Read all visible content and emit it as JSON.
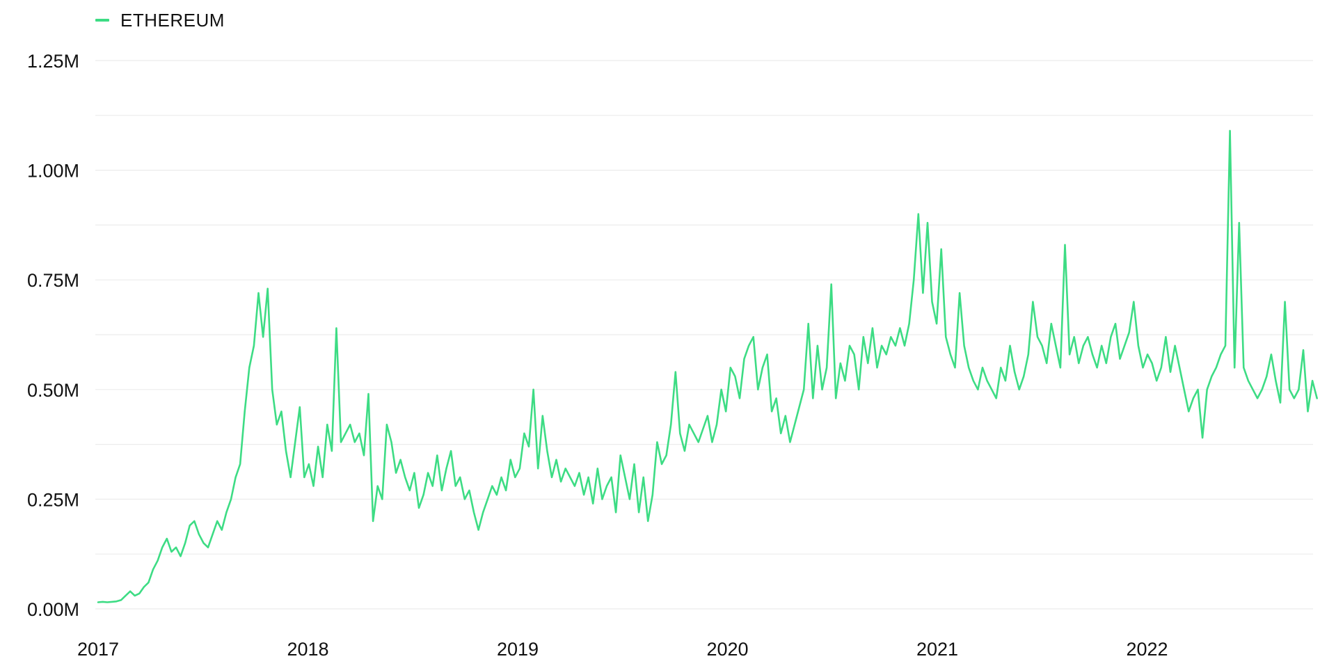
{
  "legend": {
    "label": "ETHEREUM",
    "color": "#3ddc84"
  },
  "chart_data": {
    "type": "line",
    "title": "",
    "xlabel": "",
    "ylabel": "",
    "ylim": [
      0,
      1.25
    ],
    "y_unit": "M",
    "grid": true,
    "legend_position": "top-left",
    "y_ticks": [
      "0.00M",
      "0.25M",
      "0.50M",
      "0.75M",
      "1.00M",
      "1.25M"
    ],
    "y_tick_values": [
      0,
      0.25,
      0.5,
      0.75,
      1.0,
      1.25
    ],
    "x_ticks": [
      "2017",
      "2018",
      "2019",
      "2020",
      "2021",
      "2022"
    ],
    "x_range": [
      2017.0,
      2022.81
    ],
    "series": [
      {
        "name": "ETHEREUM",
        "color": "#3ddc84",
        "x_start": 2017.0,
        "x_end": 2022.81,
        "values": [
          0.015,
          0.016,
          0.015,
          0.016,
          0.017,
          0.02,
          0.03,
          0.04,
          0.03,
          0.035,
          0.05,
          0.06,
          0.09,
          0.11,
          0.14,
          0.16,
          0.13,
          0.14,
          0.12,
          0.15,
          0.19,
          0.2,
          0.17,
          0.15,
          0.14,
          0.17,
          0.2,
          0.18,
          0.22,
          0.25,
          0.3,
          0.33,
          0.45,
          0.55,
          0.6,
          0.72,
          0.62,
          0.73,
          0.5,
          0.42,
          0.45,
          0.36,
          0.3,
          0.38,
          0.46,
          0.3,
          0.33,
          0.28,
          0.37,
          0.3,
          0.42,
          0.36,
          0.64,
          0.38,
          0.4,
          0.42,
          0.38,
          0.4,
          0.35,
          0.49,
          0.2,
          0.28,
          0.25,
          0.42,
          0.38,
          0.31,
          0.34,
          0.3,
          0.27,
          0.31,
          0.23,
          0.26,
          0.31,
          0.28,
          0.35,
          0.27,
          0.32,
          0.36,
          0.28,
          0.3,
          0.25,
          0.27,
          0.22,
          0.18,
          0.22,
          0.25,
          0.28,
          0.26,
          0.3,
          0.27,
          0.34,
          0.3,
          0.32,
          0.4,
          0.37,
          0.5,
          0.32,
          0.44,
          0.36,
          0.3,
          0.34,
          0.29,
          0.32,
          0.3,
          0.28,
          0.31,
          0.26,
          0.3,
          0.24,
          0.32,
          0.25,
          0.28,
          0.3,
          0.22,
          0.35,
          0.3,
          0.25,
          0.33,
          0.22,
          0.3,
          0.2,
          0.26,
          0.38,
          0.33,
          0.35,
          0.42,
          0.54,
          0.4,
          0.36,
          0.42,
          0.4,
          0.38,
          0.41,
          0.44,
          0.38,
          0.42,
          0.5,
          0.45,
          0.55,
          0.53,
          0.48,
          0.57,
          0.6,
          0.62,
          0.5,
          0.55,
          0.58,
          0.45,
          0.48,
          0.4,
          0.44,
          0.38,
          0.42,
          0.46,
          0.5,
          0.65,
          0.48,
          0.6,
          0.5,
          0.55,
          0.74,
          0.48,
          0.56,
          0.52,
          0.6,
          0.58,
          0.5,
          0.62,
          0.56,
          0.64,
          0.55,
          0.6,
          0.58,
          0.62,
          0.6,
          0.64,
          0.6,
          0.65,
          0.75,
          0.9,
          0.72,
          0.88,
          0.7,
          0.65,
          0.82,
          0.62,
          0.58,
          0.55,
          0.72,
          0.6,
          0.55,
          0.52,
          0.5,
          0.55,
          0.52,
          0.5,
          0.48,
          0.55,
          0.52,
          0.6,
          0.54,
          0.5,
          0.53,
          0.58,
          0.7,
          0.62,
          0.6,
          0.56,
          0.65,
          0.6,
          0.55,
          0.83,
          0.58,
          0.62,
          0.56,
          0.6,
          0.62,
          0.58,
          0.55,
          0.6,
          0.56,
          0.62,
          0.65,
          0.57,
          0.6,
          0.63,
          0.7,
          0.6,
          0.55,
          0.58,
          0.56,
          0.52,
          0.55,
          0.62,
          0.54,
          0.6,
          0.55,
          0.5,
          0.45,
          0.48,
          0.5,
          0.39,
          0.5,
          0.53,
          0.55,
          0.58,
          0.6,
          1.09,
          0.55,
          0.88,
          0.55,
          0.52,
          0.5,
          0.48,
          0.5,
          0.53,
          0.58,
          0.52,
          0.47,
          0.7,
          0.5,
          0.48,
          0.5,
          0.59,
          0.45,
          0.52,
          0.48
        ]
      }
    ]
  }
}
